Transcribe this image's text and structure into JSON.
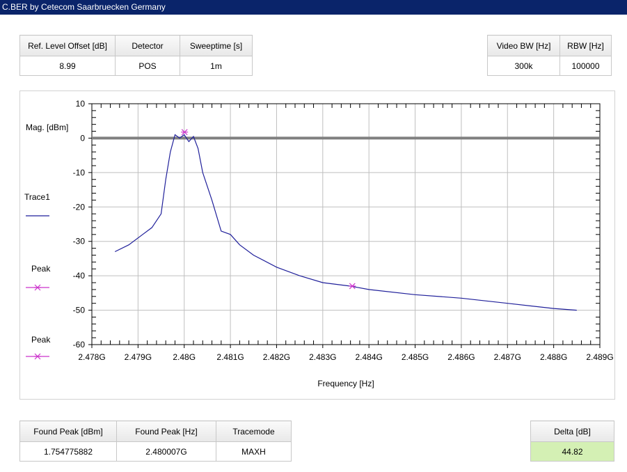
{
  "window": {
    "title": "C.BER by Cetecom Saarbruecken Germany"
  },
  "settings_left": {
    "headers": [
      "Ref. Level Offset [dB]",
      "Detector",
      "Sweeptime [s]"
    ],
    "values": [
      "8.99",
      "POS",
      "1m"
    ]
  },
  "settings_right": {
    "headers": [
      "Video BW [Hz]",
      "RBW [Hz]"
    ],
    "values": [
      "300k",
      "100000"
    ]
  },
  "results": {
    "headers": [
      "Found Peak [dBm]",
      "Found Peak [Hz]",
      "Tracemode"
    ],
    "values": [
      "1.754775882",
      "2.480007G",
      "MAXH"
    ]
  },
  "delta": {
    "header": "Delta [dB]",
    "value": "44.82"
  },
  "legend": {
    "trace1": "Trace1",
    "peak1": "Peak",
    "peak2": "Peak"
  },
  "colors": {
    "trace": "#1f1f9a",
    "marker": "#cc33cc",
    "reference_line": "#808080",
    "grid": "#bfbfbf",
    "delta_bg": "#d4f0b4",
    "titlebar": "#0a246a"
  },
  "chart_data": {
    "type": "line",
    "ylabel": "Mag. [dBm]",
    "xlabel": "Frequency [Hz]",
    "xlim": [
      2.478,
      2.489
    ],
    "ylim": [
      -60,
      10
    ],
    "x_tick_values": [
      2.478,
      2.479,
      2.48,
      2.481,
      2.482,
      2.483,
      2.484,
      2.485,
      2.486,
      2.487,
      2.488,
      2.489
    ],
    "x_tick_labels": [
      "2.478G",
      "2.479G",
      "2.48G",
      "2.481G",
      "2.482G",
      "2.483G",
      "2.484G",
      "2.485G",
      "2.486G",
      "2.487G",
      "2.488G",
      "2.489G"
    ],
    "y_tick_values": [
      10,
      0,
      -10,
      -20,
      -30,
      -40,
      -50,
      -60
    ],
    "y_tick_labels": [
      "10",
      "0",
      "-10",
      "-20",
      "-30",
      "-40",
      "-50",
      "-60"
    ],
    "grid": true,
    "reference_line_y": 0,
    "series": [
      {
        "name": "Trace1",
        "x": [
          2.4785,
          2.4788,
          2.4791,
          2.4793,
          2.4795,
          2.4796,
          2.4797,
          2.4798,
          2.4799,
          2.48,
          2.4801,
          2.4802,
          2.4803,
          2.4804,
          2.4806,
          2.4808,
          2.481,
          2.4812,
          2.4815,
          2.482,
          2.4825,
          2.483,
          2.4836,
          2.484,
          2.485,
          2.486,
          2.487,
          2.488,
          2.4885
        ],
        "y": [
          -33,
          -31,
          -28,
          -26,
          -22,
          -12,
          -4,
          1,
          0,
          1,
          -1,
          0.5,
          -3,
          -10,
          -18,
          -27,
          -28,
          -31,
          -34,
          -37.5,
          -40,
          -42,
          -43,
          -44,
          -45.5,
          -46.5,
          -48,
          -49.5,
          -50
        ]
      }
    ],
    "markers": [
      {
        "name": "Peak",
        "x": 2.480007,
        "y": 1.75
      },
      {
        "name": "Peak",
        "x": 2.48364,
        "y": -43
      }
    ]
  }
}
